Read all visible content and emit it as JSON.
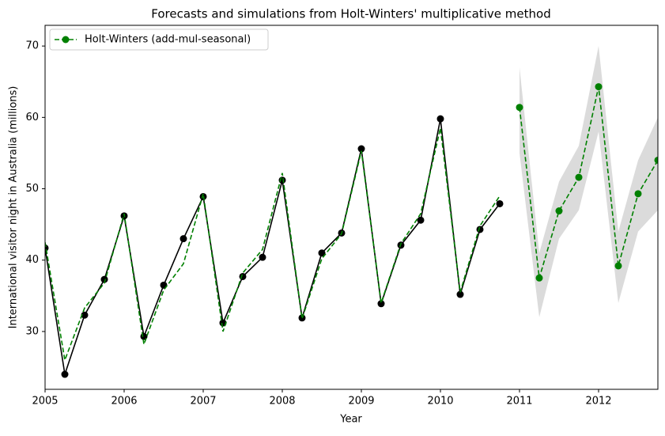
{
  "chart_data": {
    "type": "line",
    "title": "Forecasts and simulations from Holt-Winters' multiplicative method",
    "x_label": "Year",
    "y_label": "International visitor night in Australia (millions)",
    "xlim": [
      2005,
      2012.75
    ],
    "xticks": [
      2005,
      2006,
      2007,
      2008,
      2009,
      2010,
      2011,
      2012
    ],
    "ylim": [
      21.9,
      72.9
    ],
    "yticks": [
      30,
      40,
      50,
      60,
      70
    ],
    "legend": "upper left",
    "simulation_band": {
      "color": "#888888",
      "x": [
        2011.0,
        2011.25,
        2011.5,
        2011.75,
        2012.0,
        2012.25,
        2012.5,
        2012.75
      ],
      "lower": [
        55,
        32,
        43,
        47,
        58,
        34,
        44,
        47
      ],
      "upper": [
        67,
        41,
        51,
        56,
        70,
        44,
        54,
        60
      ]
    },
    "series": [
      {
        "color": "#000000",
        "style": "solid",
        "marker": true,
        "x": [
          2005.0,
          2005.25,
          2005.5,
          2005.75,
          2006.0,
          2006.25,
          2006.5,
          2006.75,
          2007.0,
          2007.25,
          2007.5,
          2007.75,
          2008.0,
          2008.25,
          2008.5,
          2008.75,
          2009.0,
          2009.25,
          2009.5,
          2009.75,
          2010.0,
          2010.25,
          2010.5,
          2010.75
        ],
        "values": [
          41.7,
          24.0,
          32.3,
          37.3,
          46.2,
          29.3,
          36.5,
          43.0,
          48.9,
          31.2,
          37.7,
          40.4,
          51.2,
          31.9,
          41.0,
          43.8,
          55.6,
          33.9,
          42.1,
          45.6,
          59.8,
          35.2,
          44.3,
          47.9
        ]
      },
      {
        "color": "#008000",
        "style": "dashed",
        "marker": false,
        "x": [
          2005.0,
          2005.25,
          2005.5,
          2005.75,
          2006.0,
          2006.25,
          2006.5,
          2006.75,
          2007.0,
          2007.25,
          2007.5,
          2007.75,
          2008.0,
          2008.25,
          2008.5,
          2008.75,
          2009.0,
          2009.25,
          2009.5,
          2009.75,
          2010.0,
          2010.25,
          2010.5,
          2010.75
        ],
        "values": [
          42.5,
          26.0,
          33.3,
          36.8,
          46.5,
          28.2,
          35.8,
          39.5,
          49.3,
          30.0,
          38.2,
          41.5,
          52.2,
          31.8,
          40.2,
          43.7,
          55.3,
          34.0,
          42.3,
          46.5,
          58.5,
          35.5,
          44.8,
          49.0
        ]
      },
      {
        "name": "Holt-Winters (add-mul-seasonal)",
        "color": "#008000",
        "style": "dashed",
        "marker": true,
        "x": [
          2011.0,
          2011.25,
          2011.5,
          2011.75,
          2012.0,
          2012.25,
          2012.5,
          2012.75
        ],
        "values": [
          61.4,
          37.5,
          46.9,
          51.6,
          64.3,
          39.2,
          49.3,
          54.0
        ]
      }
    ]
  }
}
